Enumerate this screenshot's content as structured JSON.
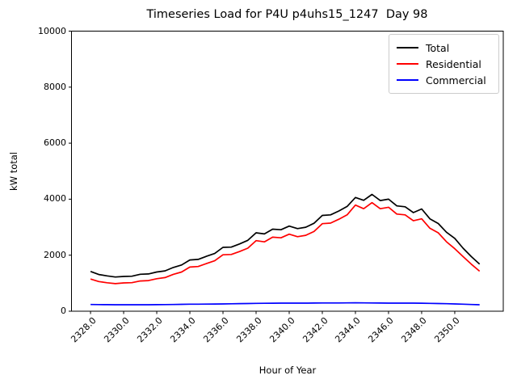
{
  "figure": {
    "title": "Timeseries Load for P4U p4uhs15_1247  Day 98",
    "xlabel": "Hour of Year",
    "ylabel": "kW total"
  },
  "legend": {
    "position": "upper right",
    "entries": [
      {
        "label": "Total",
        "color": "#000000"
      },
      {
        "label": "Residential",
        "color": "#ff0000"
      },
      {
        "label": "Commercial",
        "color": "#0000ff"
      }
    ]
  },
  "chart_data": {
    "type": "line",
    "title": "Timeseries Load for P4U p4uhs15_1247  Day 98",
    "xlabel": "Hour of Year",
    "ylabel": "kW total",
    "xlim": [
      2326.85,
      2352.93
    ],
    "ylim": [
      0,
      10000
    ],
    "grid": false,
    "legend_position": "upper right",
    "y_ticks": [
      {
        "value": 0,
        "label": "0"
      },
      {
        "value": 2000,
        "label": "2000"
      },
      {
        "value": 4000,
        "label": "4000"
      },
      {
        "value": 6000,
        "label": "6000"
      },
      {
        "value": 8000,
        "label": "8000"
      },
      {
        "value": 10000,
        "label": "10000"
      }
    ],
    "x_ticks": [
      {
        "value": 2328,
        "label": "2328.0"
      },
      {
        "value": 2330,
        "label": "2330.0"
      },
      {
        "value": 2332,
        "label": "2332.0"
      },
      {
        "value": 2334,
        "label": "2334.0"
      },
      {
        "value": 2336,
        "label": "2336.0"
      },
      {
        "value": 2338,
        "label": "2338.0"
      },
      {
        "value": 2340,
        "label": "2340.0"
      },
      {
        "value": 2342,
        "label": "2342.0"
      },
      {
        "value": 2344,
        "label": "2344.0"
      },
      {
        "value": 2346,
        "label": "2346.0"
      },
      {
        "value": 2348,
        "label": "2348.0"
      },
      {
        "value": 2350,
        "label": "2350.0"
      }
    ],
    "x": [
      2328.0,
      2328.5,
      2329.0,
      2329.5,
      2330.0,
      2330.5,
      2331.0,
      2331.5,
      2332.0,
      2332.5,
      2333.0,
      2333.5,
      2334.0,
      2334.5,
      2335.0,
      2335.5,
      2336.0,
      2336.5,
      2337.0,
      2337.5,
      2338.0,
      2338.5,
      2339.0,
      2339.5,
      2340.0,
      2340.5,
      2341.0,
      2341.5,
      2342.0,
      2342.5,
      2343.0,
      2343.5,
      2344.0,
      2344.5,
      2345.0,
      2345.5,
      2346.0,
      2346.5,
      2347.0,
      2347.5,
      2348.0,
      2348.5,
      2349.0,
      2349.5,
      2350.0,
      2350.5,
      2351.0,
      2351.5
    ],
    "series": [
      {
        "name": "Total",
        "color": "#000000",
        "values": [
          1420,
          1310,
          1260,
          1220,
          1240,
          1250,
          1320,
          1330,
          1400,
          1440,
          1560,
          1650,
          1830,
          1850,
          1960,
          2060,
          2280,
          2290,
          2400,
          2530,
          2800,
          2760,
          2930,
          2910,
          3040,
          2950,
          3000,
          3140,
          3420,
          3440,
          3580,
          3740,
          4060,
          3960,
          4170,
          3950,
          4000,
          3760,
          3730,
          3520,
          3650,
          3300,
          3130,
          2820,
          2600,
          2250,
          1950,
          1680
        ]
      },
      {
        "name": "Residential",
        "color": "#ff0000",
        "values": [
          1150,
          1060,
          1015,
          985,
          1010,
          1020,
          1080,
          1095,
          1160,
          1200,
          1315,
          1400,
          1575,
          1595,
          1700,
          1800,
          2015,
          2025,
          2130,
          2250,
          2520,
          2475,
          2645,
          2620,
          2750,
          2660,
          2710,
          2845,
          3125,
          3145,
          3285,
          3440,
          3790,
          3660,
          3875,
          3660,
          3710,
          3470,
          3440,
          3230,
          3300,
          2960,
          2800,
          2480,
          2230,
          1950,
          1680,
          1430
        ]
      },
      {
        "name": "Commercial",
        "color": "#0000ff",
        "values": [
          240,
          238,
          235,
          232,
          230,
          230,
          230,
          232,
          235,
          238,
          240,
          245,
          250,
          252,
          255,
          258,
          260,
          265,
          270,
          275,
          280,
          282,
          285,
          288,
          290,
          290,
          290,
          292,
          295,
          295,
          295,
          298,
          300,
          298,
          295,
          292,
          290,
          290,
          290,
          288,
          285,
          280,
          275,
          268,
          260,
          250,
          240,
          230
        ]
      }
    ]
  }
}
